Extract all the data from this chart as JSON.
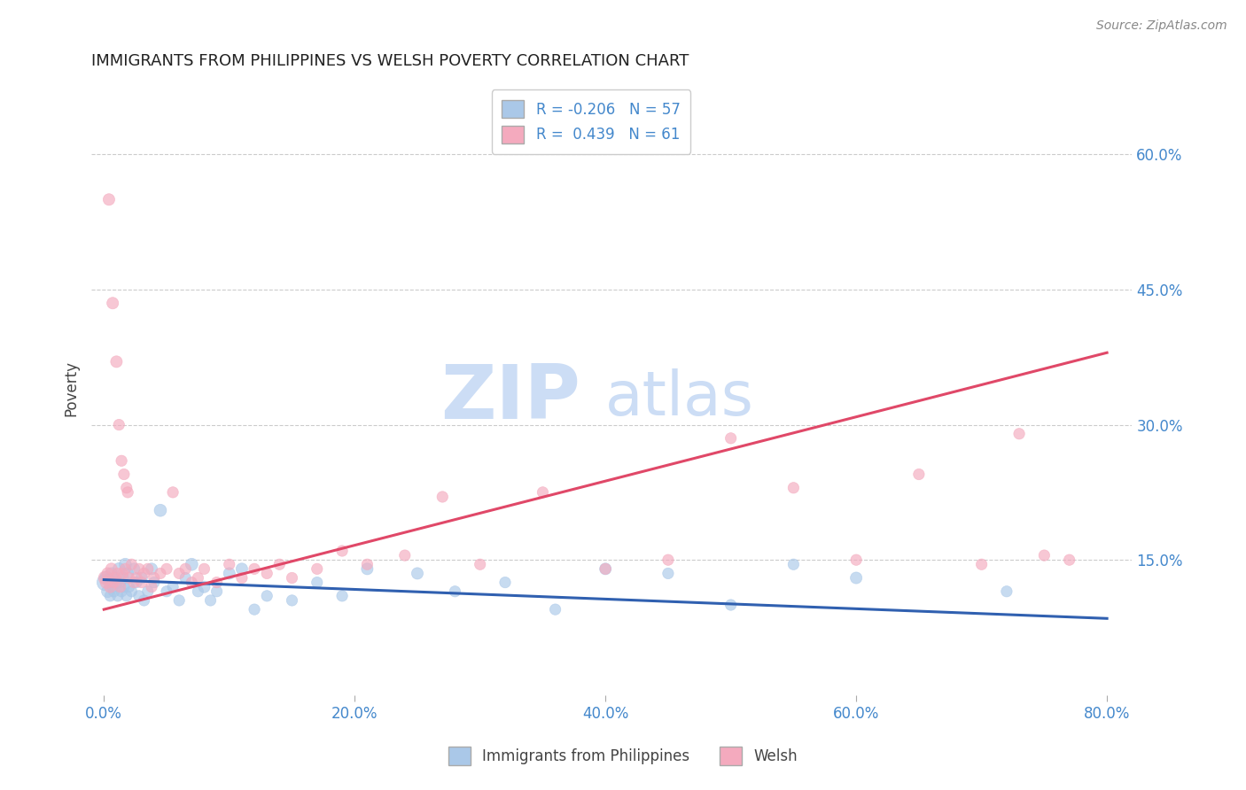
{
  "title": "IMMIGRANTS FROM PHILIPPINES VS WELSH POVERTY CORRELATION CHART",
  "source": "Source: ZipAtlas.com",
  "ylabel": "Poverty",
  "xlabel_vals": [
    0.0,
    20.0,
    40.0,
    60.0,
    80.0
  ],
  "ylabel_vals": [
    15.0,
    30.0,
    45.0,
    60.0
  ],
  "xlim": [
    -1,
    82
  ],
  "ylim": [
    0,
    68
  ],
  "blue_R": -0.206,
  "blue_N": 57,
  "pink_R": 0.439,
  "pink_N": 61,
  "blue_label": "Immigrants from Philippines",
  "pink_label": "Welsh",
  "blue_color": "#aac8e8",
  "pink_color": "#f4aabe",
  "blue_line_color": "#3060b0",
  "pink_line_color": "#e04868",
  "watermark_zip": "ZIP",
  "watermark_atlas": "atlas",
  "watermark_color": "#ccddf5",
  "background_color": "#ffffff",
  "grid_color": "#cccccc",
  "title_color": "#222222",
  "axis_label_color": "#444444",
  "tick_color": "#4488cc",
  "legend_R_color": "#4488cc",
  "blue_line_x": [
    0,
    80
  ],
  "blue_line_y": [
    12.8,
    8.5
  ],
  "pink_line_x": [
    0,
    80
  ],
  "pink_line_y": [
    9.5,
    38.0
  ],
  "blue_points": [
    [
      0.1,
      12.5,
      180
    ],
    [
      0.2,
      13.0,
      120
    ],
    [
      0.3,
      11.5,
      100
    ],
    [
      0.4,
      12.8,
      90
    ],
    [
      0.5,
      11.0,
      80
    ],
    [
      0.6,
      13.5,
      90
    ],
    [
      0.7,
      12.0,
      80
    ],
    [
      0.8,
      11.5,
      80
    ],
    [
      0.9,
      13.0,
      90
    ],
    [
      1.0,
      12.5,
      90
    ],
    [
      1.1,
      11.0,
      80
    ],
    [
      1.2,
      14.0,
      100
    ],
    [
      1.3,
      12.5,
      80
    ],
    [
      1.4,
      11.5,
      80
    ],
    [
      1.5,
      13.0,
      90
    ],
    [
      1.6,
      12.0,
      80
    ],
    [
      1.7,
      14.5,
      100
    ],
    [
      1.8,
      11.0,
      80
    ],
    [
      1.9,
      13.5,
      90
    ],
    [
      2.0,
      12.0,
      80
    ],
    [
      2.2,
      11.5,
      80
    ],
    [
      2.4,
      14.0,
      90
    ],
    [
      2.6,
      12.5,
      80
    ],
    [
      2.8,
      11.0,
      80
    ],
    [
      3.0,
      13.0,
      90
    ],
    [
      3.2,
      10.5,
      80
    ],
    [
      3.5,
      11.5,
      80
    ],
    [
      3.8,
      14.0,
      90
    ],
    [
      4.0,
      12.5,
      80
    ],
    [
      4.5,
      20.5,
      100
    ],
    [
      5.0,
      11.5,
      80
    ],
    [
      5.5,
      12.0,
      80
    ],
    [
      6.0,
      10.5,
      80
    ],
    [
      6.5,
      13.0,
      80
    ],
    [
      7.0,
      14.5,
      100
    ],
    [
      7.5,
      11.5,
      80
    ],
    [
      8.0,
      12.0,
      90
    ],
    [
      8.5,
      10.5,
      80
    ],
    [
      9.0,
      11.5,
      80
    ],
    [
      10.0,
      13.5,
      90
    ],
    [
      11.0,
      14.0,
      90
    ],
    [
      12.0,
      9.5,
      80
    ],
    [
      13.0,
      11.0,
      80
    ],
    [
      15.0,
      10.5,
      80
    ],
    [
      17.0,
      12.5,
      80
    ],
    [
      19.0,
      11.0,
      80
    ],
    [
      21.0,
      14.0,
      90
    ],
    [
      25.0,
      13.5,
      90
    ],
    [
      28.0,
      11.5,
      80
    ],
    [
      32.0,
      12.5,
      80
    ],
    [
      36.0,
      9.5,
      80
    ],
    [
      40.0,
      14.0,
      90
    ],
    [
      45.0,
      13.5,
      80
    ],
    [
      50.0,
      10.0,
      80
    ],
    [
      55.0,
      14.5,
      80
    ],
    [
      60.0,
      13.0,
      90
    ],
    [
      72.0,
      11.5,
      80
    ]
  ],
  "pink_points": [
    [
      0.1,
      13.0,
      120
    ],
    [
      0.2,
      12.5,
      100
    ],
    [
      0.3,
      13.5,
      90
    ],
    [
      0.4,
      55.0,
      90
    ],
    [
      0.5,
      12.0,
      90
    ],
    [
      0.6,
      14.0,
      90
    ],
    [
      0.7,
      43.5,
      90
    ],
    [
      0.8,
      12.5,
      80
    ],
    [
      0.9,
      13.0,
      80
    ],
    [
      1.0,
      37.0,
      90
    ],
    [
      1.1,
      13.5,
      80
    ],
    [
      1.2,
      30.0,
      80
    ],
    [
      1.3,
      12.0,
      80
    ],
    [
      1.4,
      26.0,
      80
    ],
    [
      1.5,
      13.5,
      80
    ],
    [
      1.6,
      24.5,
      80
    ],
    [
      1.7,
      14.0,
      80
    ],
    [
      1.8,
      23.0,
      80
    ],
    [
      1.9,
      22.5,
      80
    ],
    [
      2.0,
      13.0,
      80
    ],
    [
      2.2,
      14.5,
      80
    ],
    [
      2.4,
      12.5,
      80
    ],
    [
      2.6,
      13.0,
      80
    ],
    [
      2.8,
      14.0,
      80
    ],
    [
      3.0,
      12.5,
      80
    ],
    [
      3.2,
      13.5,
      80
    ],
    [
      3.5,
      14.0,
      80
    ],
    [
      3.8,
      12.0,
      80
    ],
    [
      4.0,
      13.0,
      80
    ],
    [
      4.5,
      13.5,
      80
    ],
    [
      5.0,
      14.0,
      80
    ],
    [
      5.5,
      22.5,
      80
    ],
    [
      6.0,
      13.5,
      80
    ],
    [
      6.5,
      14.0,
      80
    ],
    [
      7.0,
      12.5,
      80
    ],
    [
      7.5,
      13.0,
      80
    ],
    [
      8.0,
      14.0,
      80
    ],
    [
      9.0,
      12.5,
      80
    ],
    [
      10.0,
      14.5,
      80
    ],
    [
      11.0,
      13.0,
      80
    ],
    [
      12.0,
      14.0,
      80
    ],
    [
      13.0,
      13.5,
      80
    ],
    [
      14.0,
      14.5,
      80
    ],
    [
      15.0,
      13.0,
      80
    ],
    [
      17.0,
      14.0,
      80
    ],
    [
      19.0,
      16.0,
      80
    ],
    [
      21.0,
      14.5,
      80
    ],
    [
      24.0,
      15.5,
      80
    ],
    [
      27.0,
      22.0,
      80
    ],
    [
      30.0,
      14.5,
      80
    ],
    [
      35.0,
      22.5,
      80
    ],
    [
      40.0,
      14.0,
      80
    ],
    [
      45.0,
      15.0,
      80
    ],
    [
      50.0,
      28.5,
      80
    ],
    [
      55.0,
      23.0,
      80
    ],
    [
      60.0,
      15.0,
      80
    ],
    [
      65.0,
      24.5,
      80
    ],
    [
      70.0,
      14.5,
      80
    ],
    [
      73.0,
      29.0,
      80
    ],
    [
      75.0,
      15.5,
      80
    ],
    [
      77.0,
      15.0,
      80
    ]
  ]
}
